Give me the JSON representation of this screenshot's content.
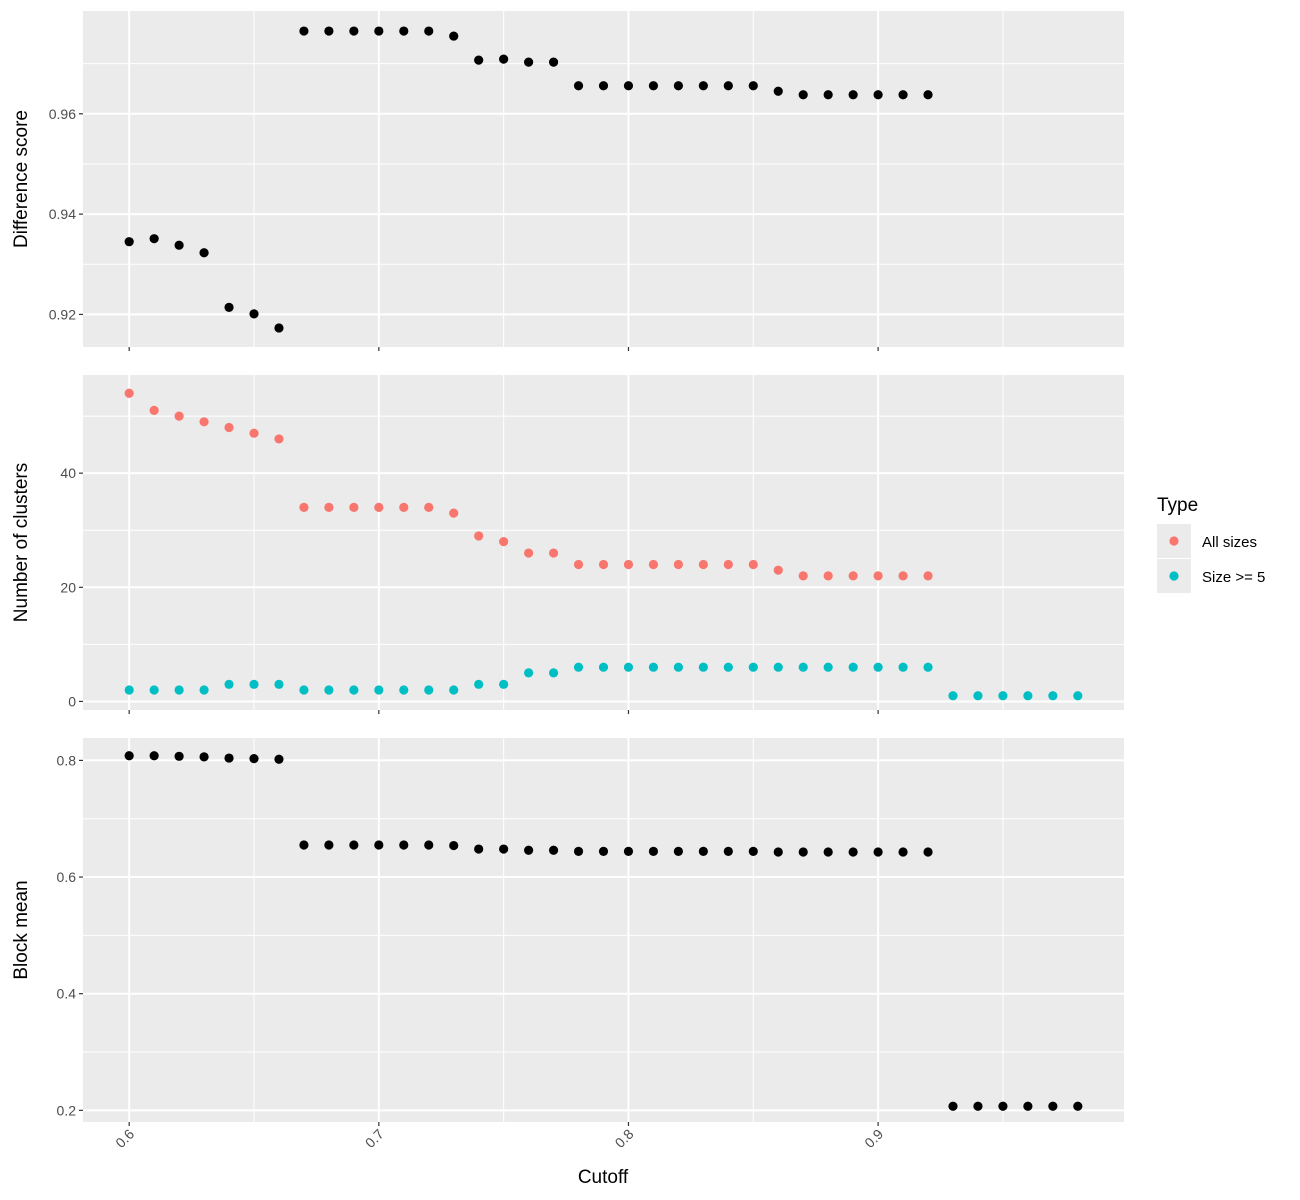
{
  "chart_data": {
    "type": "scatter",
    "xlabel": "Cutoff",
    "x_ticks": [
      "0.6",
      "0.7",
      "0.8",
      "0.9"
    ],
    "xlim": [
      0.5815,
      0.9985
    ],
    "grid": true,
    "legend": {
      "title": "Type",
      "placement": "right",
      "entries": [
        {
          "label": "All sizes",
          "color": "#F8766D"
        },
        {
          "label": "Size >= 5",
          "color": "#00BFC4"
        }
      ]
    },
    "panels": [
      {
        "ylabel": "Difference score",
        "ylim": [
          0.9135,
          0.9805
        ],
        "y_ticks": [
          "0.92",
          "0.94",
          "0.96"
        ],
        "series": [
          {
            "color": "#000000",
            "x": [
              0.6,
              0.61,
              0.62,
              0.63,
              0.64,
              0.65,
              0.66,
              0.67,
              0.68,
              0.69,
              0.7,
              0.71,
              0.72,
              0.73,
              0.74,
              0.75,
              0.76,
              0.77,
              0.78,
              0.79,
              0.8,
              0.81,
              0.82,
              0.83,
              0.84,
              0.85,
              0.86,
              0.87,
              0.88,
              0.89,
              0.9,
              0.91,
              0.92
            ],
            "y": [
              0.9345,
              0.9351,
              0.9338,
              0.9323,
              0.9214,
              0.9201,
              0.9173,
              0.9765,
              0.9765,
              0.9765,
              0.9765,
              0.9765,
              0.9765,
              0.9755,
              0.9707,
              0.9709,
              0.9703,
              0.9703,
              0.9656,
              0.9656,
              0.9656,
              0.9656,
              0.9656,
              0.9656,
              0.9656,
              0.9656,
              0.9645,
              0.9638,
              0.9638,
              0.9638,
              0.9638,
              0.9638,
              0.9638
            ]
          }
        ]
      },
      {
        "ylabel": "Number of clusters",
        "ylim": [
          -1.5,
          57.2
        ],
        "y_ticks": [
          "0",
          "20",
          "40"
        ],
        "series": [
          {
            "name": "All sizes",
            "color": "#F8766D",
            "x": [
              0.6,
              0.61,
              0.62,
              0.63,
              0.64,
              0.65,
              0.66,
              0.67,
              0.68,
              0.69,
              0.7,
              0.71,
              0.72,
              0.73,
              0.74,
              0.75,
              0.76,
              0.77,
              0.78,
              0.79,
              0.8,
              0.81,
              0.82,
              0.83,
              0.84,
              0.85,
              0.86,
              0.87,
              0.88,
              0.89,
              0.9,
              0.91,
              0.92
            ],
            "y": [
              54,
              51,
              50,
              49,
              48,
              47,
              46,
              34,
              34,
              34,
              34,
              34,
              34,
              33,
              29,
              28,
              26,
              26,
              24,
              24,
              24,
              24,
              24,
              24,
              24,
              24,
              23,
              22,
              22,
              22,
              22,
              22,
              22
            ]
          },
          {
            "name": "Size >= 5",
            "color": "#00BFC4",
            "x": [
              0.6,
              0.61,
              0.62,
              0.63,
              0.64,
              0.65,
              0.66,
              0.67,
              0.68,
              0.69,
              0.7,
              0.71,
              0.72,
              0.73,
              0.74,
              0.75,
              0.76,
              0.77,
              0.78,
              0.79,
              0.8,
              0.81,
              0.82,
              0.83,
              0.84,
              0.85,
              0.86,
              0.87,
              0.88,
              0.89,
              0.9,
              0.91,
              0.92,
              0.93,
              0.94,
              0.95,
              0.96,
              0.97,
              0.98
            ],
            "y": [
              2,
              2,
              2,
              2,
              3,
              3,
              3,
              2,
              2,
              2,
              2,
              2,
              2,
              2,
              3,
              3,
              5,
              5,
              6,
              6,
              6,
              6,
              6,
              6,
              6,
              6,
              6,
              6,
              6,
              6,
              6,
              6,
              6,
              1,
              1,
              1,
              1,
              1,
              1
            ]
          }
        ]
      },
      {
        "ylabel": "Block mean",
        "ylim": [
          0.18,
          0.8384
        ],
        "y_ticks": [
          "0.2",
          "0.4",
          "0.6",
          "0.8"
        ],
        "series": [
          {
            "color": "#000000",
            "x": [
              0.6,
              0.61,
              0.62,
              0.63,
              0.64,
              0.65,
              0.66,
              0.67,
              0.68,
              0.69,
              0.7,
              0.71,
              0.72,
              0.73,
              0.74,
              0.75,
              0.76,
              0.77,
              0.78,
              0.79,
              0.8,
              0.81,
              0.82,
              0.83,
              0.84,
              0.85,
              0.86,
              0.87,
              0.88,
              0.89,
              0.9,
              0.91,
              0.92,
              0.93,
              0.94,
              0.95,
              0.96,
              0.97,
              0.98
            ],
            "y": [
              0.808,
              0.808,
              0.807,
              0.806,
              0.804,
              0.803,
              0.802,
              0.655,
              0.655,
              0.655,
              0.655,
              0.655,
              0.655,
              0.654,
              0.648,
              0.648,
              0.646,
              0.646,
              0.644,
              0.644,
              0.644,
              0.644,
              0.644,
              0.644,
              0.644,
              0.644,
              0.643,
              0.643,
              0.643,
              0.643,
              0.643,
              0.643,
              0.643,
              0.207,
              0.207,
              0.207,
              0.207,
              0.207,
              0.207
            ]
          }
        ]
      }
    ]
  }
}
